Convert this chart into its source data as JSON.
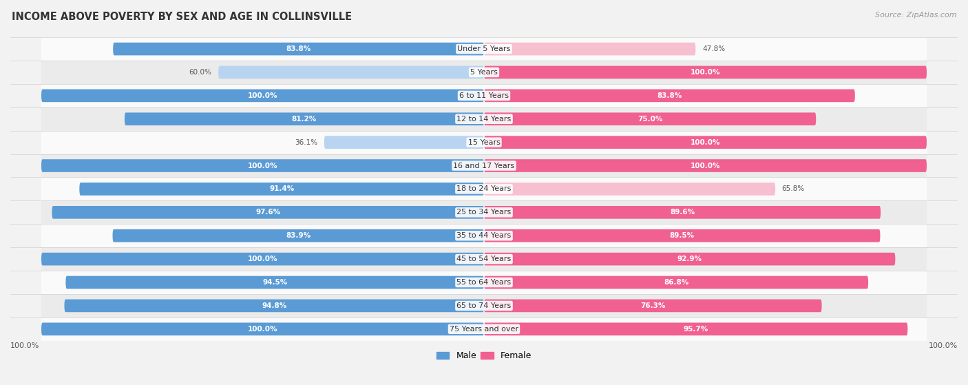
{
  "title": "INCOME ABOVE POVERTY BY SEX AND AGE IN COLLINSVILLE",
  "source": "Source: ZipAtlas.com",
  "categories": [
    "Under 5 Years",
    "5 Years",
    "6 to 11 Years",
    "12 to 14 Years",
    "15 Years",
    "16 and 17 Years",
    "18 to 24 Years",
    "25 to 34 Years",
    "35 to 44 Years",
    "45 to 54 Years",
    "55 to 64 Years",
    "65 to 74 Years",
    "75 Years and over"
  ],
  "male_values": [
    83.8,
    60.0,
    100.0,
    81.2,
    36.1,
    100.0,
    91.4,
    97.6,
    83.9,
    100.0,
    94.5,
    94.8,
    100.0
  ],
  "female_values": [
    47.8,
    100.0,
    83.8,
    75.0,
    100.0,
    100.0,
    65.8,
    89.6,
    89.5,
    92.9,
    86.8,
    76.3,
    95.7
  ],
  "male_color_strong": "#5b9bd5",
  "male_color_light": "#b8d4f0",
  "female_color_strong": "#f06090",
  "female_color_light": "#f7c0d0",
  "bar_height": 0.55,
  "background_color": "#f2f2f2",
  "row_color_light": "#fafafa",
  "row_color_dark": "#ebebeb",
  "max_value": 100.0,
  "xlabel_bottom_left": "100.0%",
  "xlabel_bottom_right": "100.0%",
  "threshold_dark": 75.0
}
